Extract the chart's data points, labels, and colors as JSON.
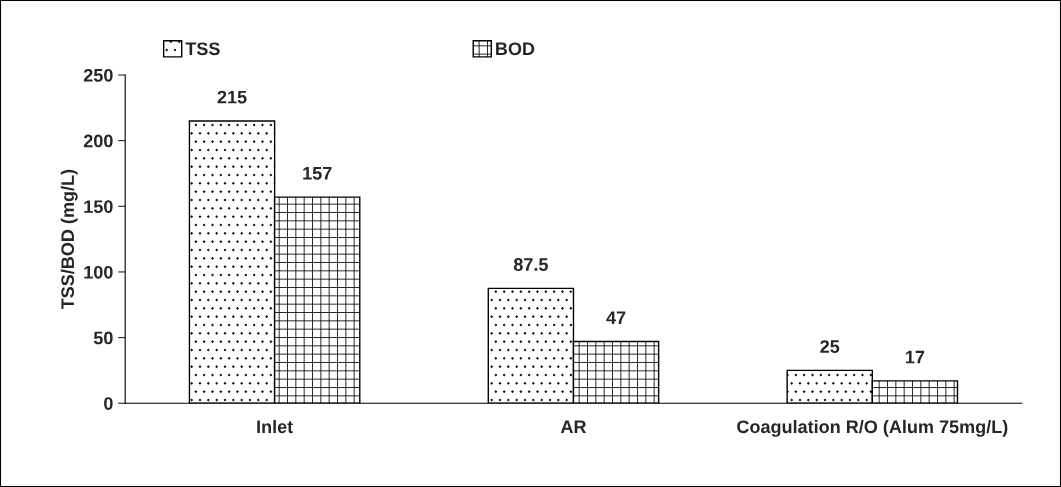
{
  "chart_data": {
    "type": "bar",
    "ylabel": "TSS/BOD (mg/L)",
    "categories": [
      "Inlet",
      "AR",
      "Coagulation R/O (Alum 75mg/L)"
    ],
    "series": [
      {
        "name": "TSS",
        "color": "#000000",
        "values": [
          215,
          87.5,
          25
        ]
      },
      {
        "name": "BOD",
        "color": "#000000",
        "values": [
          157,
          47,
          17
        ]
      }
    ],
    "ylim": [
      0,
      250
    ],
    "yticks": [
      0,
      50,
      100,
      150,
      200,
      250
    ],
    "grid": false,
    "legend": "top",
    "data_labels": true
  }
}
